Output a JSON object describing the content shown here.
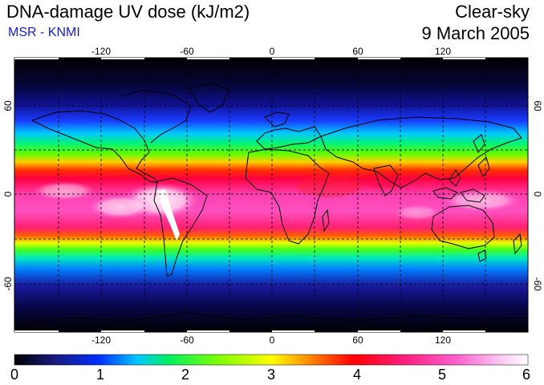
{
  "header": {
    "title": "DNA-damage UV dose (kJ/m2)",
    "subtitle": "MSR - KNMI",
    "condition": "Clear-sky",
    "date": "9 March 2005"
  },
  "map": {
    "lon_ticks": [
      "-120",
      "-60",
      "0",
      "60",
      "120"
    ],
    "lat_ticks_left": [
      "60",
      "0",
      "-60"
    ],
    "lat_ticks_right": [
      "60",
      "0",
      "-60"
    ],
    "grid": "dashed",
    "projection": "equirectangular"
  },
  "colorbar": {
    "ticks": [
      "0",
      "1",
      "2",
      "3",
      "4",
      "5",
      "6"
    ],
    "min": 0,
    "max": 6,
    "unit": "kJ/m2"
  },
  "colors": {
    "scale": [
      "#000000",
      "#1a1a80",
      "#0030ff",
      "#00c8ff",
      "#00f060",
      "#60ff00",
      "#ffff00",
      "#ff8000",
      "#ff0000",
      "#ff2080",
      "#ff60d0",
      "#ffc0f0",
      "#ffffff"
    ],
    "subtitle": "#1a1adc"
  }
}
